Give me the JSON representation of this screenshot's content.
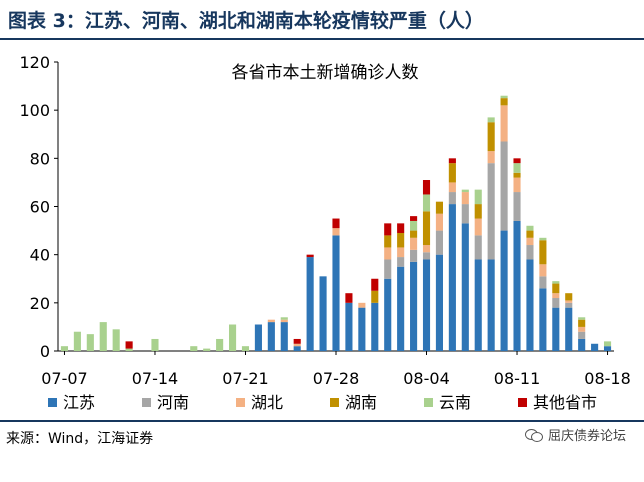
{
  "header": {
    "label": "图表 3：江苏、河南、湖北和湖南本轮疫情较严重（人）"
  },
  "footer": {
    "source": "来源：Wind，江海证券",
    "watermark": "屈庆债券论坛"
  },
  "chart_data": {
    "type": "bar",
    "stacked": true,
    "title": "各省市本土新增确诊人数",
    "xlabel": "",
    "ylabel": "",
    "ylim": [
      0,
      120
    ],
    "yticks": [
      0,
      20,
      40,
      60,
      80,
      100,
      120
    ],
    "grid": false,
    "legend_position": "bottom",
    "x_tick_labels": [
      "07-07",
      "07-14",
      "07-21",
      "07-28",
      "08-04",
      "08-11",
      "08-18"
    ],
    "dates": [
      "07-07",
      "07-08",
      "07-09",
      "07-10",
      "07-11",
      "07-12",
      "07-13",
      "07-14",
      "07-15",
      "07-16",
      "07-17",
      "07-18",
      "07-19",
      "07-20",
      "07-21",
      "07-22",
      "07-23",
      "07-24",
      "07-25",
      "07-26",
      "07-27",
      "07-28",
      "07-29",
      "07-30",
      "07-31",
      "08-01",
      "08-02",
      "08-03",
      "08-04",
      "08-05",
      "08-06",
      "08-07",
      "08-08",
      "08-09",
      "08-10",
      "08-11",
      "08-12",
      "08-13",
      "08-14",
      "08-15",
      "08-16",
      "08-17",
      "08-18"
    ],
    "series": [
      {
        "name": "江苏",
        "color": "#2e75b6",
        "values": [
          0,
          0,
          0,
          0,
          0,
          0,
          0,
          0,
          0,
          0,
          0,
          0,
          0,
          0,
          0,
          11,
          12,
          12,
          2,
          39,
          31,
          48,
          20,
          18,
          20,
          30,
          35,
          37,
          38,
          40,
          61,
          53,
          38,
          38,
          50,
          54,
          38,
          26,
          18,
          18,
          5,
          3,
          2
        ]
      },
      {
        "name": "河南",
        "color": "#a6a6a6",
        "values": [
          0,
          0,
          0,
          0,
          0,
          0,
          0,
          0,
          0,
          0,
          0,
          0,
          0,
          0,
          0,
          0,
          0,
          0,
          0,
          0,
          0,
          0,
          0,
          0,
          0,
          8,
          4,
          5,
          3,
          10,
          5,
          8,
          10,
          40,
          37,
          12,
          6,
          5,
          4,
          2,
          3,
          0,
          0
        ]
      },
      {
        "name": "湖北",
        "color": "#f4b183",
        "values": [
          0,
          0,
          0,
          0,
          0,
          0,
          0,
          0,
          0,
          0,
          0,
          0,
          0,
          0,
          0,
          0,
          1,
          1,
          1,
          0,
          0,
          3,
          0,
          2,
          0,
          5,
          4,
          5,
          3,
          7,
          4,
          5,
          7,
          5,
          15,
          6,
          3,
          5,
          2,
          1,
          2,
          0,
          0
        ]
      },
      {
        "name": "湖南",
        "color": "#c09000",
        "values": [
          0,
          0,
          0,
          0,
          0,
          0,
          0,
          0,
          0,
          0,
          0,
          0,
          0,
          0,
          0,
          0,
          0,
          0,
          0,
          0,
          0,
          0,
          0,
          0,
          5,
          5,
          6,
          3,
          14,
          5,
          8,
          0,
          6,
          12,
          3,
          2,
          3,
          10,
          4,
          3,
          3,
          0,
          0
        ]
      },
      {
        "name": "云南",
        "color": "#a9d18e",
        "values": [
          2,
          8,
          7,
          12,
          9,
          1,
          0,
          5,
          0,
          0,
          2,
          1,
          5,
          11,
          2,
          0,
          0,
          1,
          0,
          0,
          0,
          0,
          0,
          0,
          0,
          0,
          0,
          4,
          7,
          0,
          0,
          1,
          6,
          2,
          1,
          4,
          2,
          1,
          1,
          0,
          1,
          0,
          2
        ]
      },
      {
        "name": "其他省市",
        "color": "#c00000",
        "values": [
          0,
          0,
          0,
          0,
          0,
          3,
          0,
          0,
          0,
          0,
          0,
          0,
          0,
          0,
          0,
          0,
          0,
          0,
          2,
          1,
          0,
          4,
          4,
          0,
          5,
          5,
          4,
          2,
          6,
          0,
          2,
          0,
          0,
          0,
          0,
          2,
          0,
          0,
          0,
          0,
          0,
          0,
          0
        ]
      }
    ]
  }
}
